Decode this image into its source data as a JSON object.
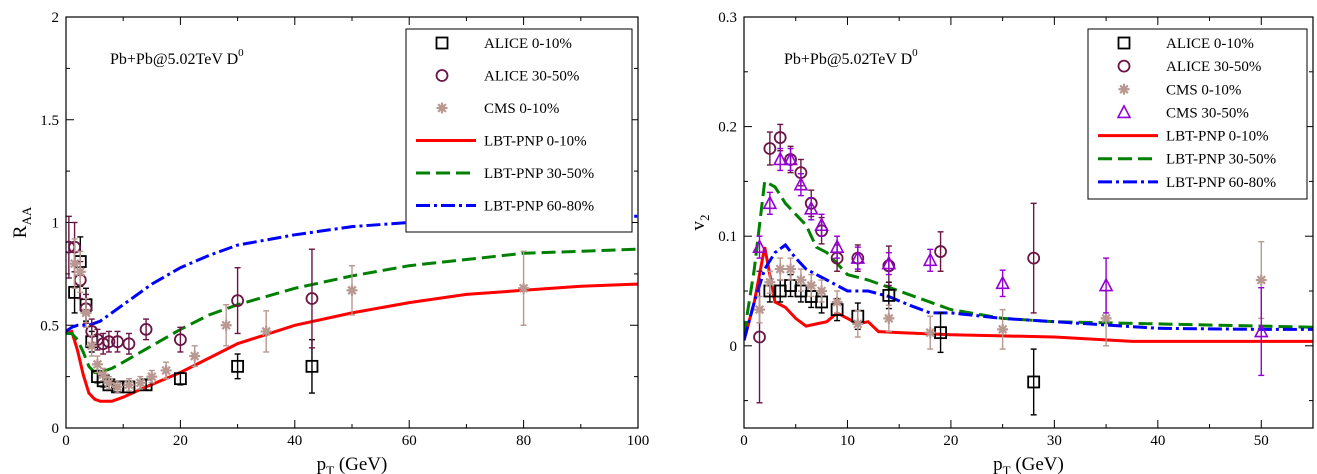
{
  "chart_data": [
    {
      "type": "scatter",
      "annotation": "Pb+Pb@5.02TeV   D",
      "annotation_sup": "0",
      "xlabel": "p",
      "xlabel_sub": "T",
      "xlabel_unit": " (GeV)",
      "ylabel": "R",
      "ylabel_sub": "AA",
      "xlim": [
        0,
        100
      ],
      "ylim": [
        0,
        2
      ],
      "xticks": [
        0,
        20,
        40,
        60,
        80,
        100
      ],
      "yticks": [
        0,
        0.5,
        1,
        1.5,
        2
      ],
      "ytick_labels": [
        "0",
        "0.5",
        "1",
        "1.5",
        "2"
      ],
      "legend_position": "top-right",
      "series": [
        {
          "name": "ALICE  0-10%",
          "kind": "marker",
          "marker": "square",
          "color": "#000000",
          "points": [
            [
              1.5,
              0.66,
              0.1
            ],
            [
              2.5,
              0.81,
              0.12
            ],
            [
              3.5,
              0.6,
              0.08
            ],
            [
              4.5,
              0.42,
              0.05
            ],
            [
              5.5,
              0.25,
              0.03
            ],
            [
              6.5,
              0.23,
              0.03
            ],
            [
              7.5,
              0.21,
              0.025
            ],
            [
              9,
              0.2,
              0.025
            ],
            [
              11,
              0.2,
              0.025
            ],
            [
              14,
              0.21,
              0.025
            ],
            [
              20,
              0.24,
              0.03
            ],
            [
              30,
              0.3,
              0.06
            ],
            [
              43,
              0.3,
              0.13
            ]
          ]
        },
        {
          "name": "ALICE  30-50%",
          "kind": "marker",
          "marker": "circle",
          "color": "#6b1545",
          "points": [
            [
              0.5,
              0.88,
              0.15
            ],
            [
              1.5,
              0.88,
              0.12
            ],
            [
              2.5,
              0.72,
              0.09
            ],
            [
              3.5,
              0.58,
              0.07
            ],
            [
              4.5,
              0.47,
              0.06
            ],
            [
              5.5,
              0.43,
              0.05
            ],
            [
              6.5,
              0.41,
              0.05
            ],
            [
              7.5,
              0.42,
              0.05
            ],
            [
              9,
              0.42,
              0.05
            ],
            [
              11,
              0.41,
              0.05
            ],
            [
              14,
              0.48,
              0.05
            ],
            [
              20,
              0.43,
              0.06
            ],
            [
              30,
              0.62,
              0.16
            ],
            [
              43,
              0.63,
              0.24
            ]
          ]
        },
        {
          "name": "CMS  0-10%",
          "kind": "marker",
          "marker": "star",
          "color": "#b89890",
          "points": [
            [
              1.5,
              0.8,
              0.12
            ],
            [
              2.5,
              0.76,
              0.1
            ],
            [
              3.5,
              0.56,
              0.07
            ],
            [
              4.5,
              0.4,
              0.05
            ],
            [
              5.5,
              0.31,
              0.04
            ],
            [
              6.5,
              0.26,
              0.03
            ],
            [
              7.5,
              0.22,
              0.03
            ],
            [
              9,
              0.2,
              0.03
            ],
            [
              11,
              0.21,
              0.03
            ],
            [
              13,
              0.22,
              0.03
            ],
            [
              15,
              0.25,
              0.03
            ],
            [
              17.5,
              0.28,
              0.04
            ],
            [
              22.5,
              0.35,
              0.05
            ],
            [
              28,
              0.5,
              0.1
            ],
            [
              35,
              0.47,
              0.1
            ],
            [
              50,
              0.67,
              0.12
            ],
            [
              80,
              0.68,
              0.18
            ]
          ]
        },
        {
          "name": "LBT-PNP  0-10%",
          "kind": "line",
          "color": "#ff0000",
          "dash": "none",
          "points": [
            [
              0,
              0.46
            ],
            [
              1,
              0.47
            ],
            [
              2,
              0.38
            ],
            [
              3,
              0.26
            ],
            [
              4,
              0.17
            ],
            [
              5,
              0.14
            ],
            [
              6,
              0.13
            ],
            [
              8,
              0.13
            ],
            [
              10,
              0.15
            ],
            [
              14,
              0.2
            ],
            [
              20,
              0.27
            ],
            [
              25,
              0.34
            ],
            [
              30,
              0.41
            ],
            [
              40,
              0.5
            ],
            [
              50,
              0.56
            ],
            [
              60,
              0.61
            ],
            [
              70,
              0.65
            ],
            [
              80,
              0.67
            ],
            [
              90,
              0.69
            ],
            [
              100,
              0.7
            ]
          ]
        },
        {
          "name": "LBT-PNP  30-50%",
          "kind": "line",
          "color": "#008000",
          "dash": "14,6",
          "points": [
            [
              0,
              0.46
            ],
            [
              1,
              0.46
            ],
            [
              2,
              0.43
            ],
            [
              3,
              0.37
            ],
            [
              4,
              0.3
            ],
            [
              5,
              0.27
            ],
            [
              6,
              0.27
            ],
            [
              8,
              0.29
            ],
            [
              10,
              0.32
            ],
            [
              15,
              0.4
            ],
            [
              20,
              0.48
            ],
            [
              25,
              0.55
            ],
            [
              30,
              0.6
            ],
            [
              40,
              0.68
            ],
            [
              50,
              0.74
            ],
            [
              60,
              0.79
            ],
            [
              70,
              0.82
            ],
            [
              80,
              0.85
            ],
            [
              90,
              0.86
            ],
            [
              100,
              0.87
            ]
          ]
        },
        {
          "name": "LBT-PNP  60-80%",
          "kind": "line",
          "color": "#0000ff",
          "dash": "14,4,3,4",
          "points": [
            [
              0,
              0.47
            ],
            [
              1,
              0.49
            ],
            [
              2,
              0.5
            ],
            [
              3,
              0.5
            ],
            [
              4,
              0.5
            ],
            [
              5,
              0.51
            ],
            [
              6,
              0.52
            ],
            [
              8,
              0.56
            ],
            [
              10,
              0.6
            ],
            [
              15,
              0.7
            ],
            [
              20,
              0.78
            ],
            [
              25,
              0.84
            ],
            [
              30,
              0.89
            ],
            [
              40,
              0.94
            ],
            [
              50,
              0.98
            ],
            [
              60,
              1.0
            ],
            [
              70,
              1.01
            ],
            [
              80,
              1.02
            ],
            [
              90,
              1.03
            ],
            [
              100,
              1.03
            ]
          ]
        }
      ]
    },
    {
      "type": "scatter",
      "annotation": "Pb+Pb@5.02TeV   D",
      "annotation_sup": "0",
      "xlabel": "p",
      "xlabel_sub": "T",
      "xlabel_unit": " (GeV)",
      "ylabel": "v",
      "ylabel_sub": "2",
      "xlim": [
        0,
        55
      ],
      "ylim": [
        -0.075,
        0.3
      ],
      "xticks": [
        0,
        10,
        20,
        30,
        40,
        50
      ],
      "yticks": [
        0,
        0.1,
        0.2,
        0.3
      ],
      "ytick_labels": [
        "0",
        "0.1",
        "0.2",
        "0.3"
      ],
      "legend_position": "top-right",
      "series": [
        {
          "name": "ALICE  0-10%",
          "kind": "marker",
          "marker": "square",
          "color": "#000000",
          "points": [
            [
              2.5,
              0.05,
              0.01
            ],
            [
              3.5,
              0.05,
              0.01
            ],
            [
              4.5,
              0.055,
              0.01
            ],
            [
              5.5,
              0.05,
              0.01
            ],
            [
              6.5,
              0.045,
              0.01
            ],
            [
              7.5,
              0.04,
              0.01
            ],
            [
              9,
              0.033,
              0.01
            ],
            [
              11,
              0.027,
              0.012
            ],
            [
              14,
              0.046,
              0.012
            ],
            [
              19,
              0.012,
              0.018
            ],
            [
              28,
              -0.033,
              0.03
            ]
          ]
        },
        {
          "name": "ALICE  30-50%",
          "kind": "marker",
          "marker": "circle",
          "color": "#6b1545",
          "points": [
            [
              1.5,
              0.008,
              0.06
            ],
            [
              2.5,
              0.18,
              0.015
            ],
            [
              3.5,
              0.19,
              0.012
            ],
            [
              4.5,
              0.17,
              0.012
            ],
            [
              5.5,
              0.158,
              0.012
            ],
            [
              6.5,
              0.13,
              0.012
            ],
            [
              7.5,
              0.105,
              0.012
            ],
            [
              9,
              0.08,
              0.012
            ],
            [
              11,
              0.08,
              0.012
            ],
            [
              14,
              0.073,
              0.018
            ],
            [
              19,
              0.086,
              0.018
            ],
            [
              28,
              0.08,
              0.05
            ]
          ]
        },
        {
          "name": "CMS  0-10%",
          "kind": "marker",
          "marker": "star",
          "color": "#b89890",
          "points": [
            [
              1.5,
              0.033,
              0.012
            ],
            [
              2.5,
              0.058,
              0.01
            ],
            [
              3.5,
              0.07,
              0.01
            ],
            [
              4.5,
              0.07,
              0.01
            ],
            [
              5.5,
              0.06,
              0.01
            ],
            [
              6.5,
              0.055,
              0.01
            ],
            [
              7.5,
              0.05,
              0.01
            ],
            [
              9,
              0.04,
              0.01
            ],
            [
              11,
              0.02,
              0.012
            ],
            [
              14,
              0.025,
              0.012
            ],
            [
              18,
              0.012,
              0.015
            ],
            [
              25,
              0.015,
              0.018
            ],
            [
              35,
              0.025,
              0.025
            ],
            [
              50,
              0.06,
              0.035
            ]
          ]
        },
        {
          "name": "CMS  30-50%",
          "kind": "marker",
          "marker": "triangle",
          "color": "#9400d3",
          "points": [
            [
              1.5,
              0.09,
              0.01
            ],
            [
              2.5,
              0.13,
              0.01
            ],
            [
              3.5,
              0.17,
              0.01
            ],
            [
              4.5,
              0.17,
              0.01
            ],
            [
              5.5,
              0.147,
              0.01
            ],
            [
              6.5,
              0.125,
              0.01
            ],
            [
              7.5,
              0.11,
              0.01
            ],
            [
              9,
              0.09,
              0.01
            ],
            [
              11,
              0.08,
              0.01
            ],
            [
              14,
              0.075,
              0.01
            ],
            [
              18,
              0.078,
              0.01
            ],
            [
              25,
              0.057,
              0.012
            ],
            [
              35,
              0.055,
              0.025
            ],
            [
              50,
              0.013,
              0.04
            ]
          ]
        },
        {
          "name": "LBT-PNP  0-10%",
          "kind": "line",
          "color": "#ff0000",
          "dash": "none",
          "points": [
            [
              0,
              0.005
            ],
            [
              1,
              0.04
            ],
            [
              2,
              0.09
            ],
            [
              3,
              0.04
            ],
            [
              4,
              0.035
            ],
            [
              5,
              0.025
            ],
            [
              6,
              0.018
            ],
            [
              7,
              0.02
            ],
            [
              8,
              0.022
            ],
            [
              9,
              0.03
            ],
            [
              10,
              0.025
            ],
            [
              11,
              0.02
            ],
            [
              12,
              0.022
            ],
            [
              13,
              0.013
            ],
            [
              15,
              0.012
            ],
            [
              20,
              0.01
            ],
            [
              25,
              0.009
            ],
            [
              30,
              0.008
            ],
            [
              37.5,
              0.004
            ],
            [
              45,
              0.004
            ],
            [
              55,
              0.004
            ]
          ]
        },
        {
          "name": "LBT-PNP  30-50%",
          "kind": "line",
          "color": "#008000",
          "dash": "14,6",
          "points": [
            [
              0,
              0.01
            ],
            [
              1,
              0.07
            ],
            [
              2,
              0.15
            ],
            [
              3,
              0.145
            ],
            [
              4,
              0.13
            ],
            [
              5,
              0.12
            ],
            [
              6,
              0.11
            ],
            [
              7,
              0.09
            ],
            [
              8,
              0.085
            ],
            [
              10,
              0.065
            ],
            [
              12,
              0.06
            ],
            [
              15,
              0.05
            ],
            [
              20,
              0.033
            ],
            [
              25,
              0.025
            ],
            [
              30,
              0.022
            ],
            [
              40,
              0.02
            ],
            [
              50,
              0.018
            ],
            [
              55,
              0.017
            ]
          ]
        },
        {
          "name": "LBT-PNP  60-80%",
          "kind": "line",
          "color": "#0000ff",
          "dash": "14,4,3,4",
          "points": [
            [
              0,
              0.005
            ],
            [
              1,
              0.04
            ],
            [
              2,
              0.07
            ],
            [
              3,
              0.085
            ],
            [
              4,
              0.092
            ],
            [
              5,
              0.08
            ],
            [
              6,
              0.07
            ],
            [
              8,
              0.06
            ],
            [
              10,
              0.05
            ],
            [
              12,
              0.05
            ],
            [
              14,
              0.045
            ],
            [
              16,
              0.037
            ],
            [
              18,
              0.03
            ],
            [
              20,
              0.03
            ],
            [
              25,
              0.025
            ],
            [
              30,
              0.022
            ],
            [
              40,
              0.016
            ],
            [
              50,
              0.015
            ],
            [
              55,
              0.015
            ]
          ]
        }
      ]
    }
  ]
}
